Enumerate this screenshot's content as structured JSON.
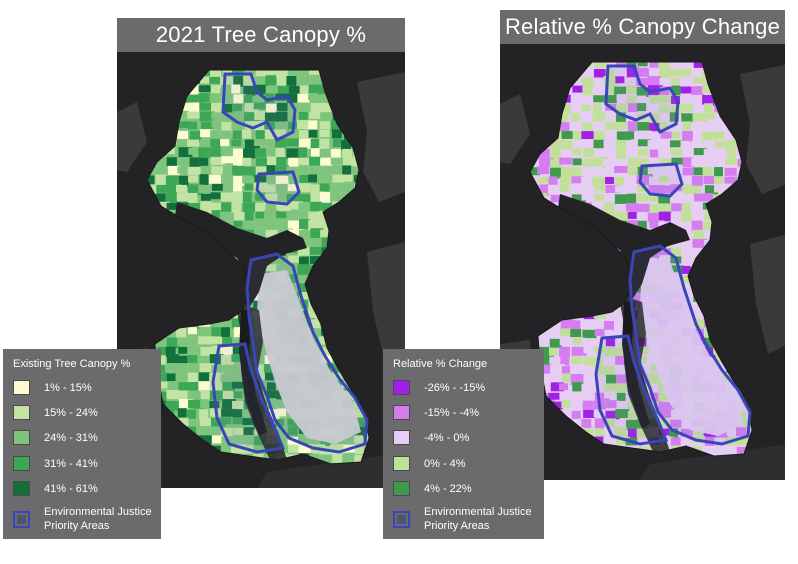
{
  "left_map": {
    "title": "2021 Tree Canopy %",
    "legend": {
      "title": "Existing Tree Canopy %",
      "items": [
        {
          "label": "1% - 15%",
          "color": "#fdfbd2"
        },
        {
          "label": "15% - 24%",
          "color": "#c2e4a3"
        },
        {
          "label": "24% - 31%",
          "color": "#7fc47d"
        },
        {
          "label": "31% - 41%",
          "color": "#3da756"
        },
        {
          "label": "41% - 61%",
          "color": "#12703b"
        }
      ],
      "ej_line1": "Environmental Justice",
      "ej_line2": "Priority Areas"
    }
  },
  "right_map": {
    "title": "Relative % Canopy Change",
    "legend": {
      "title": "Relative % Change",
      "items": [
        {
          "label": "-26% - -15%",
          "color": "#a020e8"
        },
        {
          "label": "-15% - -4%",
          "color": "#d47cf0"
        },
        {
          "label": "-4% - 0%",
          "color": "#e6cdf3"
        },
        {
          "label": "0% - 4%",
          "color": "#c3df9c"
        },
        {
          "label": "4% - 22%",
          "color": "#3f9b4c"
        }
      ],
      "ej_line1": "Environmental Justice",
      "ej_line2": "Priority Areas"
    }
  },
  "colors": {
    "water": "#232326",
    "land_outside": "#3a3a3c",
    "ej_outline": "#3a46b8",
    "no_data": "#d3d3d3"
  }
}
